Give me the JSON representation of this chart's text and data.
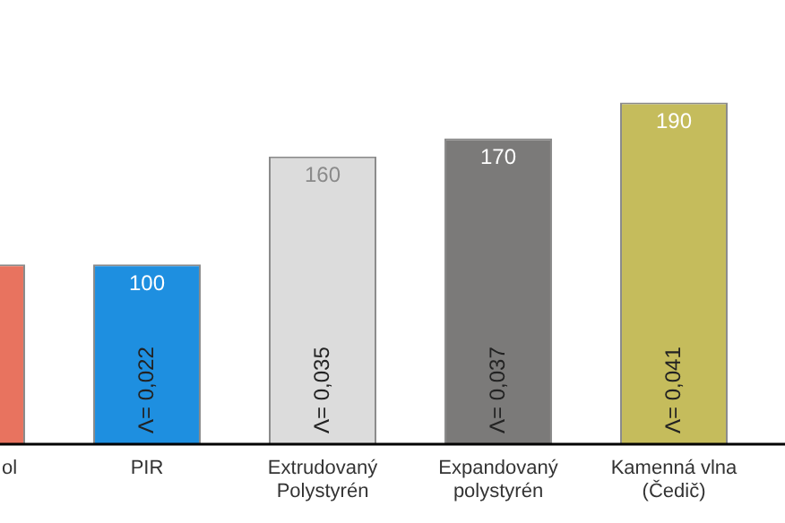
{
  "chart_data": {
    "type": "bar",
    "categories": [
      "ol",
      "PIR",
      "Extrudovaný\nPolystyrén",
      "Expandovaný\npolystyrén",
      "Kamenná vlna\n(Čedič)"
    ],
    "values": [
      100,
      100,
      160,
      170,
      190
    ],
    "value_labels": [
      null,
      "100",
      "160",
      "170",
      "190"
    ],
    "colors": [
      "#e8735f",
      "#1e8fe0",
      "#dcdcdc",
      "#7b7a79",
      "#c5bc5c"
    ],
    "annotations": [
      "Λ= 0,022",
      "Λ= 0,035",
      "Λ= 0,037",
      "Λ= 0,041"
    ]
  }
}
